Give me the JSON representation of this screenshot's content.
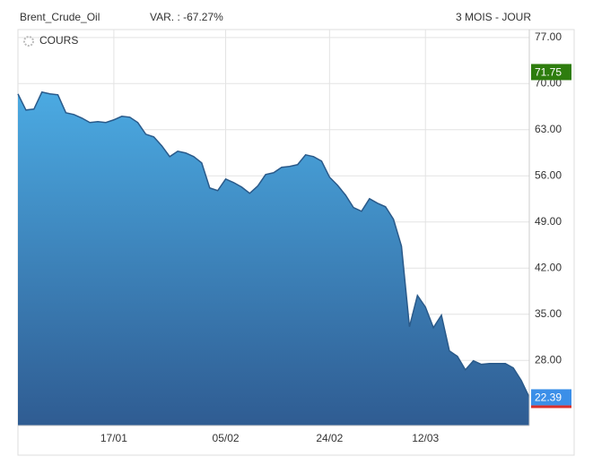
{
  "chart_data": {
    "type": "area",
    "title": "Brent_Crude_Oil",
    "subtitle": "VAR. : -67.27%",
    "period": "3 MOIS - JOUR",
    "series": [
      {
        "name": "COURS",
        "color": "#2a5a8a",
        "values": [
          68.44,
          65.99,
          66.13,
          68.71,
          68.44,
          68.3,
          65.58,
          65.31,
          64.77,
          64.09,
          64.22,
          64.09,
          64.5,
          65.04,
          64.9,
          64.09,
          62.32,
          61.92,
          60.56,
          58.92,
          59.74,
          59.47,
          58.92,
          57.97,
          54.17,
          53.76,
          55.52,
          54.98,
          54.3,
          53.35,
          54.44,
          56.2,
          56.48,
          57.29,
          57.43,
          57.7,
          59.19,
          58.92,
          58.24,
          55.8,
          54.57,
          53.08,
          51.18,
          50.63,
          52.53,
          51.85,
          51.31,
          49.41,
          45.33,
          33.1,
          37.85,
          36.09,
          32.96,
          34.86,
          29.43,
          28.61,
          26.57,
          27.93,
          27.39,
          27.52,
          27.52,
          27.52,
          26.85,
          24.94,
          22.39
        ]
      }
    ],
    "categories": [
      null,
      null,
      null,
      null,
      null,
      null,
      null,
      null,
      null,
      null,
      null,
      null,
      "17/01",
      null,
      null,
      null,
      null,
      null,
      null,
      null,
      null,
      null,
      null,
      null,
      null,
      null,
      "05/02",
      null,
      null,
      null,
      null,
      null,
      null,
      null,
      null,
      null,
      null,
      null,
      null,
      "24/02",
      null,
      null,
      null,
      null,
      null,
      null,
      null,
      null,
      null,
      null,
      null,
      "12/03",
      null,
      null,
      null,
      null,
      null,
      null,
      null,
      null,
      null,
      null,
      null,
      null,
      null
    ],
    "ylim": [
      18.1,
      78.2
    ],
    "yticks": [
      {
        "value": 28,
        "label": "28.00"
      },
      {
        "value": 35,
        "label": "35.00"
      },
      {
        "value": 42,
        "label": "42.00"
      },
      {
        "value": 49,
        "label": "49.00"
      },
      {
        "value": 56,
        "label": "56.00"
      },
      {
        "value": 63,
        "label": "63.00"
      },
      {
        "value": 70,
        "label": "70.00"
      },
      {
        "value": 77,
        "label": "77.00"
      }
    ],
    "grid": true,
    "price_tags": [
      {
        "value": 71.75,
        "label": "71.75",
        "color": "#2e7d0e"
      },
      {
        "value": 22.39,
        "label": "22.39",
        "color": "#3b8fe8"
      }
    ]
  }
}
